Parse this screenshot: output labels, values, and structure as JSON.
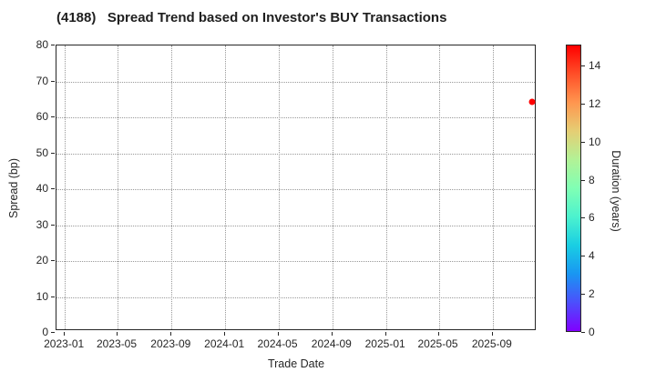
{
  "title": "(4188)   Spread Trend based on Investor's BUY Transactions",
  "chart_data": {
    "type": "scatter",
    "title": "(4188)   Spread Trend based on Investor's BUY Transactions",
    "xlabel": "Trade Date",
    "ylabel": "Spread (bp)",
    "x_axis": {
      "tick_labels": [
        "2023-01",
        "2023-05",
        "2023-09",
        "2024-01",
        "2024-05",
        "2024-09",
        "2025-01",
        "2025-05",
        "2025-09"
      ],
      "tick_days_from_2023_01": [
        0,
        120,
        243,
        365,
        486,
        609,
        731,
        851,
        974
      ],
      "range_days": [
        -19,
        1078
      ]
    },
    "y_axis": {
      "ticks": [
        0,
        10,
        20,
        30,
        40,
        50,
        60,
        70,
        80
      ],
      "range": [
        0,
        80
      ]
    },
    "grid": true,
    "legend": "none",
    "points": [
      {
        "trade_date": "2025-12",
        "day": 1066,
        "spread_bp": 64,
        "duration_years": 15,
        "color": "#ff0000"
      }
    ],
    "colorbar": {
      "label": "Duration (years)",
      "min": 0,
      "max": 15.1,
      "ticks": [
        0,
        2,
        4,
        6,
        8,
        10,
        12,
        14
      ],
      "colormap": "rainbow",
      "gradient_bottom_to_top": [
        "#8000ff",
        "#4c4ffc",
        "#1996f2",
        "#19cee3",
        "#4cf2ce",
        "#80ffb4",
        "#b2f296",
        "#e5ce74",
        "#ff964f",
        "#ff4f28",
        "#ff0000"
      ]
    }
  },
  "colors": {
    "text": "#262626",
    "axis": "#262626",
    "grid": "#999999",
    "background": "#ffffff",
    "marker": "#ff0000"
  }
}
